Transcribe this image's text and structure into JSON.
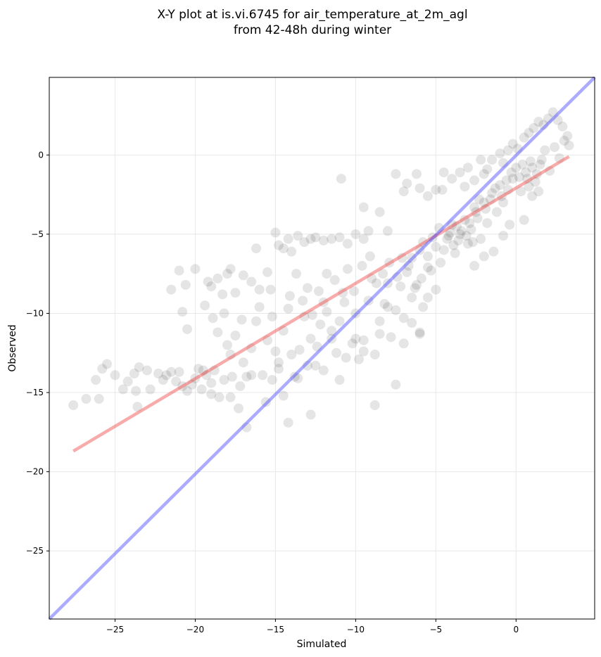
{
  "chart_data": {
    "type": "scatter",
    "title": "X-Y plot at is.vi.6745 for air_temperature_at_2m_agl",
    "subtitle": "from 42-48h during winter",
    "xlabel": "Simulated",
    "ylabel": "Observed",
    "xlim": [
      -29.1,
      4.9
    ],
    "ylim": [
      -29.3,
      4.9
    ],
    "xticks": [
      -25,
      -20,
      -15,
      -10,
      -5,
      0
    ],
    "yticks": [
      0,
      -5,
      -10,
      -15,
      -20,
      -25
    ],
    "xtick_labels": [
      "−25",
      "−20",
      "−15",
      "−10",
      "−5",
      "0"
    ],
    "ytick_labels": [
      "0",
      "−5",
      "−10",
      "−15",
      "−20",
      "−25"
    ],
    "grid": true,
    "legend": "none",
    "series": [
      {
        "kind": "scatter",
        "color": "#000000",
        "opacity": 0.1,
        "points": [
          [
            -27.6,
            -15.8
          ],
          [
            -26.8,
            -15.4
          ],
          [
            -26.2,
            -14.2
          ],
          [
            -25.8,
            -13.5
          ],
          [
            -25.5,
            -13.2
          ],
          [
            -26.0,
            -15.4
          ],
          [
            -25.0,
            -13.9
          ],
          [
            -24.5,
            -14.8
          ],
          [
            -24.2,
            -14.3
          ],
          [
            -23.8,
            -13.8
          ],
          [
            -23.5,
            -13.4
          ],
          [
            -23.7,
            -14.9
          ],
          [
            -23.6,
            -15.9
          ],
          [
            -23.0,
            -13.6
          ],
          [
            -22.8,
            -14.8
          ],
          [
            -22.3,
            -13.8
          ],
          [
            -22.0,
            -14.2
          ],
          [
            -21.8,
            -13.9
          ],
          [
            -21.5,
            -13.7
          ],
          [
            -21.2,
            -14.3
          ],
          [
            -21.0,
            -13.7
          ],
          [
            -20.8,
            -14.6
          ],
          [
            -20.5,
            -14.9
          ],
          [
            -20.2,
            -14.5
          ],
          [
            -20.0,
            -14.1
          ],
          [
            -19.8,
            -13.5
          ],
          [
            -19.5,
            -13.6
          ],
          [
            -19.3,
            -13.9
          ],
          [
            -19.0,
            -14.4
          ],
          [
            -18.8,
            -13.6
          ],
          [
            -21.5,
            -8.5
          ],
          [
            -21.0,
            -7.3
          ],
          [
            -20.6,
            -8.2
          ],
          [
            -20.0,
            -7.2
          ],
          [
            -20.8,
            -9.9
          ],
          [
            -20.5,
            -11.0
          ],
          [
            -19.4,
            -9.5
          ],
          [
            -19.2,
            -8.0
          ],
          [
            -19.0,
            -8.3
          ],
          [
            -18.6,
            -7.8
          ],
          [
            -18.3,
            -8.8
          ],
          [
            -18.0,
            -7.5
          ],
          [
            -17.8,
            -7.2
          ],
          [
            -17.5,
            -8.7
          ],
          [
            -17.0,
            -7.6
          ],
          [
            -16.5,
            -8.0
          ],
          [
            -16.0,
            -8.5
          ],
          [
            -16.2,
            -5.9
          ],
          [
            -15.5,
            -7.4
          ],
          [
            -15.3,
            -8.5
          ],
          [
            -15.0,
            -4.9
          ],
          [
            -14.8,
            -5.7
          ],
          [
            -14.5,
            -5.9
          ],
          [
            -14.2,
            -5.3
          ],
          [
            -14.0,
            -6.1
          ],
          [
            -13.6,
            -5.1
          ],
          [
            -13.2,
            -5.5
          ],
          [
            -12.8,
            -5.3
          ],
          [
            -12.5,
            -5.2
          ],
          [
            -12.0,
            -5.4
          ],
          [
            -11.5,
            -5.3
          ],
          [
            -11.0,
            -5.2
          ],
          [
            -10.5,
            -5.6
          ],
          [
            -10.0,
            -5.0
          ],
          [
            -9.5,
            -5.3
          ],
          [
            -9.2,
            -4.8
          ],
          [
            -18.9,
            -10.3
          ],
          [
            -18.6,
            -11.2
          ],
          [
            -18.2,
            -10.0
          ],
          [
            -18.0,
            -12.0
          ],
          [
            -17.8,
            -12.6
          ],
          [
            -17.5,
            -11.4
          ],
          [
            -17.1,
            -10.4
          ],
          [
            -17.0,
            -13.1
          ],
          [
            -16.8,
            -14.0
          ],
          [
            -16.5,
            -12.2
          ],
          [
            -16.2,
            -10.5
          ],
          [
            -16.0,
            -9.6
          ],
          [
            -15.8,
            -13.9
          ],
          [
            -15.5,
            -11.7
          ],
          [
            -15.2,
            -10.2
          ],
          [
            -15.0,
            -12.4
          ],
          [
            -14.8,
            -13.5
          ],
          [
            -14.5,
            -11.1
          ],
          [
            -14.2,
            -9.7
          ],
          [
            -14.0,
            -12.6
          ],
          [
            -13.8,
            -14.0
          ],
          [
            -13.5,
            -12.3
          ],
          [
            -13.2,
            -10.2
          ],
          [
            -13.0,
            -8.4
          ],
          [
            -12.8,
            -11.6
          ],
          [
            -12.5,
            -13.3
          ],
          [
            -12.2,
            -10.7
          ],
          [
            -12.0,
            -9.3
          ],
          [
            -11.8,
            -7.5
          ],
          [
            -11.5,
            -11.6
          ],
          [
            -11.2,
            -12.5
          ],
          [
            -11.0,
            -10.5
          ],
          [
            -10.8,
            -8.7
          ],
          [
            -10.5,
            -7.2
          ],
          [
            -10.2,
            -11.9
          ],
          [
            -10.0,
            -10.0
          ],
          [
            -9.8,
            -12.9
          ],
          [
            -9.5,
            -11.7
          ],
          [
            -9.2,
            -9.2
          ],
          [
            -9.0,
            -7.8
          ],
          [
            -8.8,
            -12.6
          ],
          [
            -8.5,
            -10.5
          ],
          [
            -8.2,
            -9.4
          ],
          [
            -8.0,
            -8.1
          ],
          [
            -7.8,
            -11.5
          ],
          [
            -7.5,
            -9.8
          ],
          [
            -7.2,
            -8.3
          ],
          [
            -7.0,
            -10.3
          ],
          [
            -6.8,
            -7.4
          ],
          [
            -6.5,
            -9.0
          ],
          [
            -6.2,
            -8.2
          ],
          [
            -6.0,
            -11.2
          ],
          [
            -5.8,
            -9.6
          ],
          [
            -5.5,
            -7.1
          ],
          [
            -15.6,
            -15.6
          ],
          [
            -15.2,
            -14.2
          ],
          [
            -14.8,
            -13.1
          ],
          [
            -14.5,
            -15.2
          ],
          [
            -14.2,
            -16.9
          ],
          [
            -13.6,
            -14.1
          ],
          [
            -13.0,
            -13.3
          ],
          [
            -12.8,
            -16.4
          ],
          [
            -12.4,
            -12.1
          ],
          [
            -12.0,
            -13.6
          ],
          [
            -11.5,
            -11.1
          ],
          [
            -11.0,
            -14.2
          ],
          [
            -10.6,
            -12.8
          ],
          [
            -10.0,
            -11.6
          ],
          [
            -9.5,
            -12.4
          ],
          [
            -8.8,
            -15.8
          ],
          [
            -8.5,
            -11.3
          ],
          [
            -8.0,
            -9.6
          ],
          [
            -7.5,
            -14.5
          ],
          [
            -7.0,
            -11.9
          ],
          [
            -6.5,
            -10.6
          ],
          [
            -6.0,
            -11.3
          ],
          [
            -5.5,
            -9.0
          ],
          [
            -5.0,
            -8.5
          ],
          [
            -17.3,
            -16.0
          ],
          [
            -16.8,
            -17.2
          ],
          [
            -16.5,
            -13.9
          ],
          [
            -17.8,
            -15.3
          ],
          [
            -18.5,
            -15.3
          ],
          [
            -19.0,
            -15.1
          ],
          [
            -19.6,
            -14.8
          ],
          [
            -18.2,
            -14.2
          ],
          [
            -17.7,
            -14.0
          ],
          [
            -17.2,
            -14.6
          ],
          [
            -10.9,
            -1.5
          ],
          [
            -9.5,
            -3.3
          ],
          [
            -8.5,
            -3.6
          ],
          [
            -8.0,
            -4.8
          ],
          [
            -7.5,
            -1.2
          ],
          [
            -7.0,
            -2.3
          ],
          [
            -6.8,
            -1.8
          ],
          [
            -6.2,
            -1.2
          ],
          [
            -6.0,
            -2.1
          ],
          [
            -5.5,
            -2.6
          ],
          [
            -5.0,
            -2.2
          ],
          [
            -4.6,
            -2.2
          ],
          [
            -4.5,
            -1.1
          ],
          [
            -4.0,
            -1.5
          ],
          [
            -3.5,
            -1.1
          ],
          [
            -3.2,
            -2.0
          ],
          [
            -3.0,
            -0.8
          ],
          [
            -2.6,
            -1.6
          ],
          [
            -2.2,
            -0.3
          ],
          [
            -2.0,
            -1.2
          ],
          [
            -1.8,
            -0.9
          ],
          [
            -1.5,
            -0.3
          ],
          [
            -1.0,
            0.1
          ],
          [
            -0.8,
            -0.5
          ],
          [
            -0.5,
            0.3
          ],
          [
            -0.2,
            0.7
          ],
          [
            0.1,
            0.4
          ],
          [
            0.5,
            1.1
          ],
          [
            0.8,
            1.4
          ],
          [
            1.1,
            1.7
          ],
          [
            1.4,
            2.1
          ],
          [
            1.7,
            1.9
          ],
          [
            2.0,
            2.3
          ],
          [
            2.3,
            2.7
          ],
          [
            2.6,
            2.2
          ],
          [
            2.9,
            1.8
          ],
          [
            3.2,
            1.2
          ],
          [
            3.3,
            0.6
          ],
          [
            -6.5,
            -6.5
          ],
          [
            -6.0,
            -6.0
          ],
          [
            -5.8,
            -5.5
          ],
          [
            -5.5,
            -6.4
          ],
          [
            -5.2,
            -5.2
          ],
          [
            -5.0,
            -5.8
          ],
          [
            -4.8,
            -4.6
          ],
          [
            -4.5,
            -6.0
          ],
          [
            -4.2,
            -5.1
          ],
          [
            -4.0,
            -4.4
          ],
          [
            -3.8,
            -6.2
          ],
          [
            -3.5,
            -5.0
          ],
          [
            -3.2,
            -4.1
          ],
          [
            -3.0,
            -5.6
          ],
          [
            -2.8,
            -4.7
          ],
          [
            -2.5,
            -3.6
          ],
          [
            -2.2,
            -5.3
          ],
          [
            -2.0,
            -3.0
          ],
          [
            -1.8,
            -4.3
          ],
          [
            -1.5,
            -2.4
          ],
          [
            -1.2,
            -3.6
          ],
          [
            -1.0,
            -1.9
          ],
          [
            -0.8,
            -3.0
          ],
          [
            -0.5,
            -2.2
          ],
          [
            -0.2,
            -1.5
          ],
          [
            0.0,
            -0.8
          ],
          [
            0.3,
            -2.3
          ],
          [
            0.6,
            -1.1
          ],
          [
            0.9,
            -0.4
          ],
          [
            1.2,
            -1.7
          ],
          [
            1.5,
            -0.6
          ],
          [
            1.8,
            0.3
          ],
          [
            2.1,
            -1.0
          ],
          [
            2.4,
            0.5
          ],
          [
            2.7,
            -0.2
          ],
          [
            3.0,
            0.9
          ],
          [
            -3.6,
            -5.4
          ],
          [
            -3.4,
            -4.8
          ],
          [
            -3.1,
            -5.1
          ],
          [
            -2.9,
            -4.3
          ],
          [
            -2.7,
            -5.5
          ],
          [
            -2.4,
            -4.0
          ],
          [
            -4.3,
            -5.3
          ],
          [
            -4.1,
            -4.9
          ],
          [
            -3.9,
            -5.7
          ],
          [
            -3.7,
            -4.5
          ],
          [
            -2.6,
            -3.3
          ],
          [
            -2.3,
            -2.8
          ],
          [
            -1.9,
            -3.4
          ],
          [
            -1.6,
            -2.8
          ],
          [
            -1.3,
            -2.1
          ],
          [
            -0.9,
            -2.6
          ],
          [
            -0.6,
            -1.6
          ],
          [
            -0.3,
            -1.1
          ],
          [
            0.2,
            -1.4
          ],
          [
            0.4,
            -0.6
          ],
          [
            0.7,
            -1.5
          ],
          [
            1.0,
            -0.8
          ],
          [
            1.3,
            -1.2
          ],
          [
            1.6,
            -0.3
          ],
          [
            -1.4,
            -6.1
          ],
          [
            -0.8,
            -5.1
          ],
          [
            -0.4,
            -4.4
          ],
          [
            0.5,
            -4.1
          ],
          [
            -2.0,
            -6.4
          ],
          [
            -2.6,
            -7.0
          ],
          [
            1.0,
            -2.6
          ],
          [
            1.4,
            -2.3
          ],
          [
            0.8,
            -2.0
          ],
          [
            -4.7,
            -6.8
          ],
          [
            -5.3,
            -7.3
          ],
          [
            -5.9,
            -7.8
          ],
          [
            -6.3,
            -8.4
          ],
          [
            -6.7,
            -7.0
          ],
          [
            -7.1,
            -6.5
          ],
          [
            -7.4,
            -7.7
          ],
          [
            -7.9,
            -6.8
          ],
          [
            -8.3,
            -7.5
          ],
          [
            -8.7,
            -8.1
          ],
          [
            -9.1,
            -6.4
          ],
          [
            -9.6,
            -7.0
          ],
          [
            -10.1,
            -8.6
          ],
          [
            -10.7,
            -9.3
          ],
          [
            -11.3,
            -7.9
          ],
          [
            -11.8,
            -9.9
          ],
          [
            -12.3,
            -8.6
          ],
          [
            -12.7,
            -10.1
          ],
          [
            -13.3,
            -9.2
          ],
          [
            -13.7,
            -7.5
          ],
          [
            -14.1,
            -8.9
          ]
        ]
      },
      {
        "kind": "line",
        "name": "",
        "color": "#ef4444",
        "opacity": 0.45,
        "points": [
          [
            -27.6,
            -18.7
          ],
          [
            3.3,
            -0.1
          ]
        ]
      },
      {
        "kind": "line",
        "name": "",
        "color": "#4444ff",
        "opacity": 0.45,
        "points": [
          [
            -29.1,
            -29.3
          ],
          [
            4.9,
            4.9
          ]
        ]
      }
    ]
  }
}
